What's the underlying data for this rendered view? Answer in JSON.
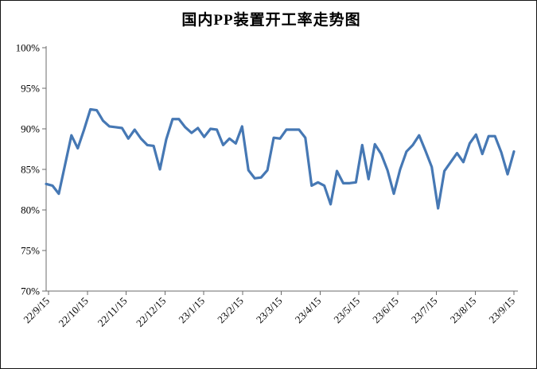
{
  "chart_data": {
    "type": "line",
    "title": "国内PP装置开工率走势图",
    "y_axis": {
      "min": 70,
      "max": 100,
      "step": 5,
      "unit": "%"
    },
    "y_tick_labels": [
      "100%",
      "95%",
      "90%",
      "85%",
      "80%",
      "75%",
      "70%"
    ],
    "x_tick_labels": [
      "22/9/15",
      "22/10/15",
      "22/11/15",
      "22/12/15",
      "23/1/15",
      "23/2/15",
      "23/3/15",
      "23/4/15",
      "23/5/15",
      "23/6/15",
      "23/7/15",
      "23/8/15",
      "23/9/15"
    ],
    "grid": "off",
    "legend": "none",
    "line_color": "#4678b4",
    "axis_color": "#6b6b6b",
    "background_color": "#ffffff",
    "values_unit": "%",
    "values": [
      83.2,
      83.0,
      82.0,
      85.6,
      89.2,
      87.6,
      89.9,
      92.4,
      92.3,
      91.0,
      90.3,
      90.2,
      90.1,
      88.8,
      89.9,
      88.8,
      88.0,
      87.9,
      85.0,
      88.7,
      91.2,
      91.2,
      90.2,
      89.5,
      90.1,
      89.0,
      90.0,
      89.9,
      88.0,
      88.8,
      88.2,
      90.3,
      84.9,
      83.9,
      84.0,
      84.9,
      88.9,
      88.8,
      89.9,
      89.9,
      89.9,
      88.9,
      83.0,
      83.4,
      83.0,
      80.7,
      84.8,
      83.3,
      83.3,
      83.4,
      88.0,
      83.8,
      88.1,
      86.9,
      84.9,
      82.0,
      85.0,
      87.2,
      88.0,
      89.2,
      87.3,
      85.3,
      80.2,
      84.8,
      85.9,
      87.0,
      85.9,
      88.2,
      89.3,
      86.9,
      89.1,
      89.1,
      87.1,
      84.4,
      87.2
    ]
  }
}
